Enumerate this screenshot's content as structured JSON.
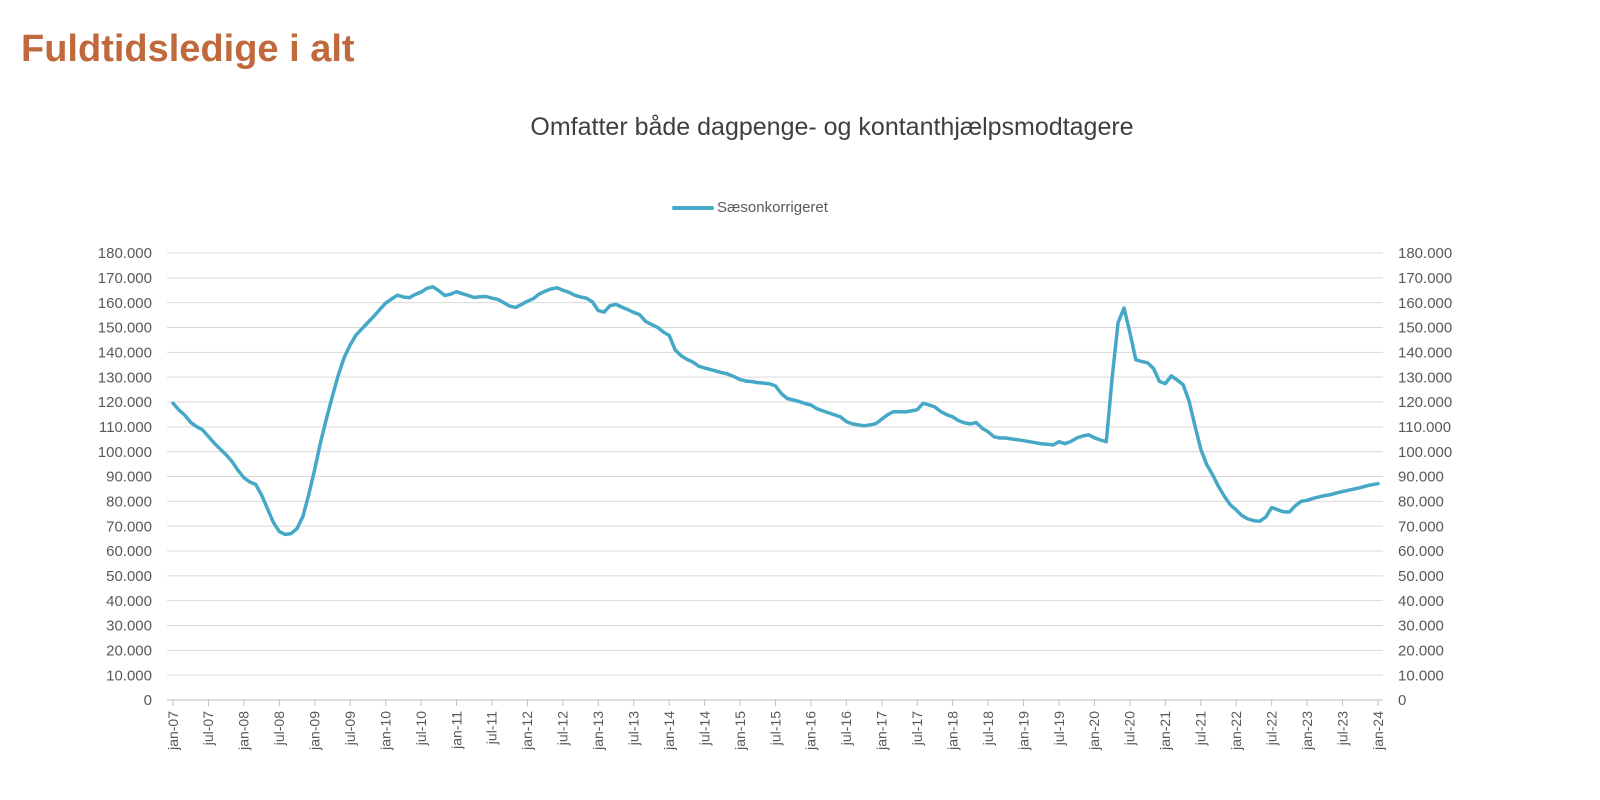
{
  "page": {
    "title": "Fuldtidsledige i alt"
  },
  "chart": {
    "subtitle": "Omfatter både dagpenge- og kontanthjælpsmodtagere",
    "legend_label": "Sæsonkorrigeret"
  },
  "colors": {
    "title": "#C0693C",
    "subtitle": "#3F3F3F",
    "axis_text": "#595959",
    "gridline": "#D9D9D9",
    "axis_line": "#BFBFBF",
    "series": "#45A8C6"
  },
  "chart_data": {
    "type": "line",
    "title": "Omfatter både dagpenge- og kontanthjælpsmodtagere",
    "legend_position": "top-center",
    "grid": "horizontal",
    "dual_y_axis": true,
    "ylim": [
      0,
      180000
    ],
    "y_tick_step": 10000,
    "y_tick_labels": [
      "0",
      "10.000",
      "20.000",
      "30.000",
      "40.000",
      "50.000",
      "60.000",
      "70.000",
      "80.000",
      "90.000",
      "100.000",
      "110.000",
      "120.000",
      "130.000",
      "140.000",
      "150.000",
      "160.000",
      "170.000",
      "180.000"
    ],
    "x_frequency": "monthly",
    "x_start": "jan-07",
    "x_end": "jan-24",
    "x_tick_every_months": 6,
    "x_tick_labels": [
      "jan-07",
      "jul-07",
      "jan-08",
      "jul-08",
      "jan-09",
      "jul-09",
      "jan-10",
      "jul-10",
      "jan-11",
      "jul-11",
      "jan-12",
      "jul-12",
      "jan-13",
      "jul-13",
      "jan-14",
      "jul-14",
      "jan-15",
      "jul-15",
      "jan-16",
      "jul-16",
      "jan-17",
      "jul-17",
      "jan-18",
      "jul-18",
      "jan-19",
      "jul-19",
      "jan-20",
      "jul-20",
      "jan-21",
      "jul-21",
      "jan-22",
      "jul-22",
      "jan-23",
      "jul-23",
      "jan-24"
    ],
    "series": [
      {
        "name": "Sæsonkorrigeret",
        "color": "#45A8C6",
        "values": [
          119500,
          116800,
          114700,
          111800,
          110100,
          108800,
          106100,
          103400,
          101000,
          98700,
          96000,
          92500,
          89500,
          87800,
          86800,
          82500,
          77000,
          71500,
          67800,
          66700,
          67000,
          69000,
          74000,
          83000,
          93000,
          104000,
          113500,
          122500,
          131000,
          138000,
          143000,
          147000,
          149500,
          152000,
          154500,
          157200,
          159800,
          161500,
          163000,
          162300,
          162000,
          163300,
          164300,
          165800,
          166400,
          164800,
          162900,
          163400,
          164400,
          163600,
          162900,
          162100,
          162400,
          162500,
          161800,
          161300,
          160000,
          158600,
          158100,
          159300,
          160600,
          161600,
          163500,
          164600,
          165500,
          166000,
          165000,
          164200,
          163000,
          162300,
          161800,
          160300,
          156800,
          156200,
          158800,
          159300,
          158200,
          157200,
          156100,
          155200,
          152500,
          151200,
          150100,
          148200,
          146800,
          141000,
          138700,
          137200,
          136100,
          134400,
          133700,
          133100,
          132400,
          131800,
          131200,
          130200,
          129000,
          128400,
          128200,
          127800,
          127600,
          127300,
          126500,
          123400,
          121400,
          120800,
          120200,
          119400,
          118800,
          117300,
          116400,
          115600,
          114800,
          114000,
          112100,
          111200,
          110800,
          110400,
          110800,
          111300,
          113100,
          114900,
          116100,
          116100,
          116000,
          116400,
          116900,
          119500,
          118800,
          118000,
          116100,
          114900,
          114000,
          112500,
          111600,
          111200,
          111700,
          109400,
          108000,
          106000,
          105500,
          105500,
          105100,
          104800,
          104400,
          104000,
          103600,
          103200,
          103000,
          102700,
          104000,
          103200,
          104100,
          105500,
          106300,
          106800,
          105600,
          104700,
          104000,
          130000,
          152000,
          157800,
          148000,
          137000,
          136300,
          135800,
          133500,
          128300,
          127400,
          130500,
          128800,
          127000,
          120500,
          110500,
          101000,
          94800,
          90700,
          86000,
          82000,
          78600,
          76500,
          74200,
          72900,
          72200,
          72000,
          73700,
          77500,
          76600,
          75800,
          75700,
          78200,
          80000,
          80400,
          81200,
          81800,
          82300,
          82700,
          83400,
          83900,
          84500,
          85000,
          85500,
          86200,
          86700,
          87100
        ]
      }
    ]
  }
}
